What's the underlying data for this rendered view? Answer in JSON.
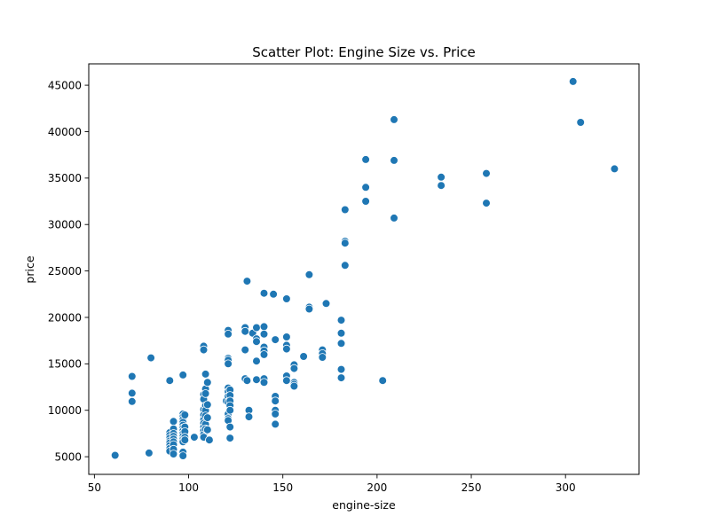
{
  "chart_data": {
    "type": "scatter",
    "title": "Scatter Plot: Engine Size vs. Price",
    "xlabel": "engine-size",
    "ylabel": "price",
    "xlim": [
      47,
      339
    ],
    "ylim": [
      3100,
      47300
    ],
    "xticks": [
      50,
      100,
      150,
      200,
      250,
      300
    ],
    "yticks": [
      5000,
      10000,
      15000,
      20000,
      25000,
      30000,
      35000,
      40000,
      45000
    ],
    "grid": false,
    "legend": "none",
    "marker_color": "#1f77b4",
    "marker_edge_color": "#ffffff",
    "points": [
      [
        61,
        5151
      ],
      [
        79,
        5400
      ],
      [
        70,
        13645
      ],
      [
        70,
        11845
      ],
      [
        70,
        10945
      ],
      [
        80,
        15645
      ],
      [
        90,
        13200
      ],
      [
        90,
        7600
      ],
      [
        90,
        7300
      ],
      [
        90,
        7000
      ],
      [
        90,
        6700
      ],
      [
        90,
        6500
      ],
      [
        90,
        6200
      ],
      [
        90,
        5900
      ],
      [
        90,
        5600
      ],
      [
        92,
        8800
      ],
      [
        92,
        8000
      ],
      [
        92,
        7500
      ],
      [
        92,
        7200
      ],
      [
        92,
        6900
      ],
      [
        92,
        6600
      ],
      [
        92,
        6300
      ],
      [
        92,
        5800
      ],
      [
        92,
        5300
      ],
      [
        97,
        13800
      ],
      [
        97,
        9600
      ],
      [
        97,
        9300
      ],
      [
        97,
        9000
      ],
      [
        97,
        8700
      ],
      [
        97,
        8400
      ],
      [
        97,
        8100
      ],
      [
        97,
        7800
      ],
      [
        97,
        7500
      ],
      [
        97,
        7200
      ],
      [
        97,
        6900
      ],
      [
        97,
        6600
      ],
      [
        97,
        5500
      ],
      [
        97,
        5100
      ],
      [
        98,
        9500
      ],
      [
        98,
        8200
      ],
      [
        98,
        7700
      ],
      [
        98,
        7100
      ],
      [
        98,
        6800
      ],
      [
        103,
        7100
      ],
      [
        108,
        16900
      ],
      [
        108,
        16500
      ],
      [
        108,
        11700
      ],
      [
        108,
        11200
      ],
      [
        108,
        10100
      ],
      [
        108,
        9500
      ],
      [
        108,
        9000
      ],
      [
        108,
        8600
      ],
      [
        108,
        8200
      ],
      [
        108,
        7800
      ],
      [
        108,
        7400
      ],
      [
        108,
        7100
      ],
      [
        109,
        13900
      ],
      [
        109,
        12300
      ],
      [
        109,
        11800
      ],
      [
        109,
        10500
      ],
      [
        109,
        10000
      ],
      [
        109,
        9400
      ],
      [
        109,
        8500
      ],
      [
        109,
        8000
      ],
      [
        110,
        13000
      ],
      [
        110,
        10600
      ],
      [
        110,
        9200
      ],
      [
        110,
        7900
      ],
      [
        111,
        6800
      ],
      [
        120,
        11000
      ],
      [
        121,
        18600
      ],
      [
        121,
        18200
      ],
      [
        121,
        15600
      ],
      [
        121,
        15400
      ],
      [
        121,
        15000
      ],
      [
        121,
        12400
      ],
      [
        121,
        12000
      ],
      [
        121,
        11500
      ],
      [
        121,
        10900
      ],
      [
        121,
        9600
      ],
      [
        121,
        9100
      ],
      [
        121,
        8900
      ],
      [
        122,
        12200
      ],
      [
        122,
        11600
      ],
      [
        122,
        11000
      ],
      [
        122,
        10500
      ],
      [
        122,
        10000
      ],
      [
        122,
        8200
      ],
      [
        122,
        7000
      ],
      [
        130,
        18900
      ],
      [
        130,
        18500
      ],
      [
        130,
        16500
      ],
      [
        130,
        13400
      ],
      [
        131,
        23900
      ],
      [
        131,
        13200
      ],
      [
        132,
        10000
      ],
      [
        132,
        9300
      ],
      [
        134,
        18300
      ],
      [
        136,
        18900
      ],
      [
        136,
        17700
      ],
      [
        136,
        17400
      ],
      [
        136,
        15300
      ],
      [
        136,
        13300
      ],
      [
        140,
        22600
      ],
      [
        140,
        19000
      ],
      [
        140,
        18200
      ],
      [
        140,
        16800
      ],
      [
        140,
        16400
      ],
      [
        140,
        16000
      ],
      [
        140,
        13400
      ],
      [
        140,
        13000
      ],
      [
        145,
        22500
      ],
      [
        146,
        17600
      ],
      [
        146,
        11500
      ],
      [
        146,
        11000
      ],
      [
        146,
        10000
      ],
      [
        146,
        9600
      ],
      [
        146,
        8500
      ],
      [
        152,
        22000
      ],
      [
        152,
        17900
      ],
      [
        152,
        17000
      ],
      [
        152,
        16600
      ],
      [
        152,
        13700
      ],
      [
        152,
        13200
      ],
      [
        156,
        14900
      ],
      [
        156,
        14500
      ],
      [
        156,
        13000
      ],
      [
        156,
        12800
      ],
      [
        156,
        12600
      ],
      [
        161,
        15800
      ],
      [
        164,
        24600
      ],
      [
        164,
        21100
      ],
      [
        164,
        20900
      ],
      [
        171,
        16500
      ],
      [
        171,
        16100
      ],
      [
        171,
        15700
      ],
      [
        173,
        21500
      ],
      [
        181,
        19700
      ],
      [
        181,
        18300
      ],
      [
        181,
        17200
      ],
      [
        181,
        14400
      ],
      [
        181,
        13500
      ],
      [
        183,
        31600
      ],
      [
        183,
        28200
      ],
      [
        183,
        28000
      ],
      [
        183,
        25600
      ],
      [
        194,
        37000
      ],
      [
        194,
        34000
      ],
      [
        194,
        32500
      ],
      [
        203,
        13200
      ],
      [
        209,
        41300
      ],
      [
        209,
        36900
      ],
      [
        209,
        30700
      ],
      [
        234,
        35100
      ],
      [
        234,
        34200
      ],
      [
        258,
        35500
      ],
      [
        258,
        32300
      ],
      [
        304,
        45400
      ],
      [
        308,
        41000
      ],
      [
        326,
        36000
      ]
    ]
  }
}
